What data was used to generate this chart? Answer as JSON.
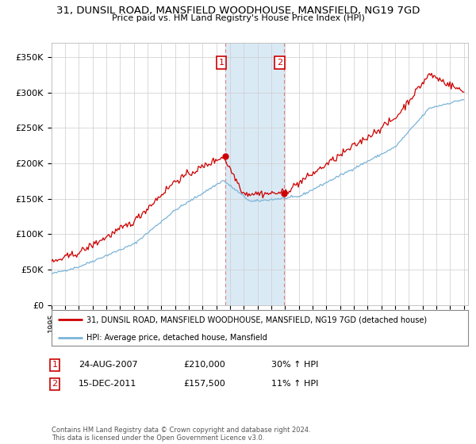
{
  "title": "31, DUNSIL ROAD, MANSFIELD WOODHOUSE, MANSFIELD, NG19 7GD",
  "subtitle": "Price paid vs. HM Land Registry's House Price Index (HPI)",
  "legend_line1": "31, DUNSIL ROAD, MANSFIELD WOODHOUSE, MANSFIELD, NG19 7GD (detached house)",
  "legend_line2": "HPI: Average price, detached house, Mansfield",
  "sale1_date": "24-AUG-2007",
  "sale1_price": 210000,
  "sale1_label": "£210,000",
  "sale1_pct": "30% ↑ HPI",
  "sale2_date": "15-DEC-2011",
  "sale2_price": 157500,
  "sale2_label": "£157,500",
  "sale2_pct": "11% ↑ HPI",
  "footnote": "Contains HM Land Registry data © Crown copyright and database right 2024.\nThis data is licensed under the Open Government Licence v3.0.",
  "hpi_color": "#7ab4d8",
  "price_color": "#cc0000",
  "highlight_color": "#daeaf5",
  "ylim": [
    0,
    370000
  ],
  "yticks": [
    0,
    50000,
    100000,
    150000,
    200000,
    250000,
    300000,
    350000
  ],
  "xmin": 1995,
  "xmax": 2025.3,
  "background": "#ffffff"
}
